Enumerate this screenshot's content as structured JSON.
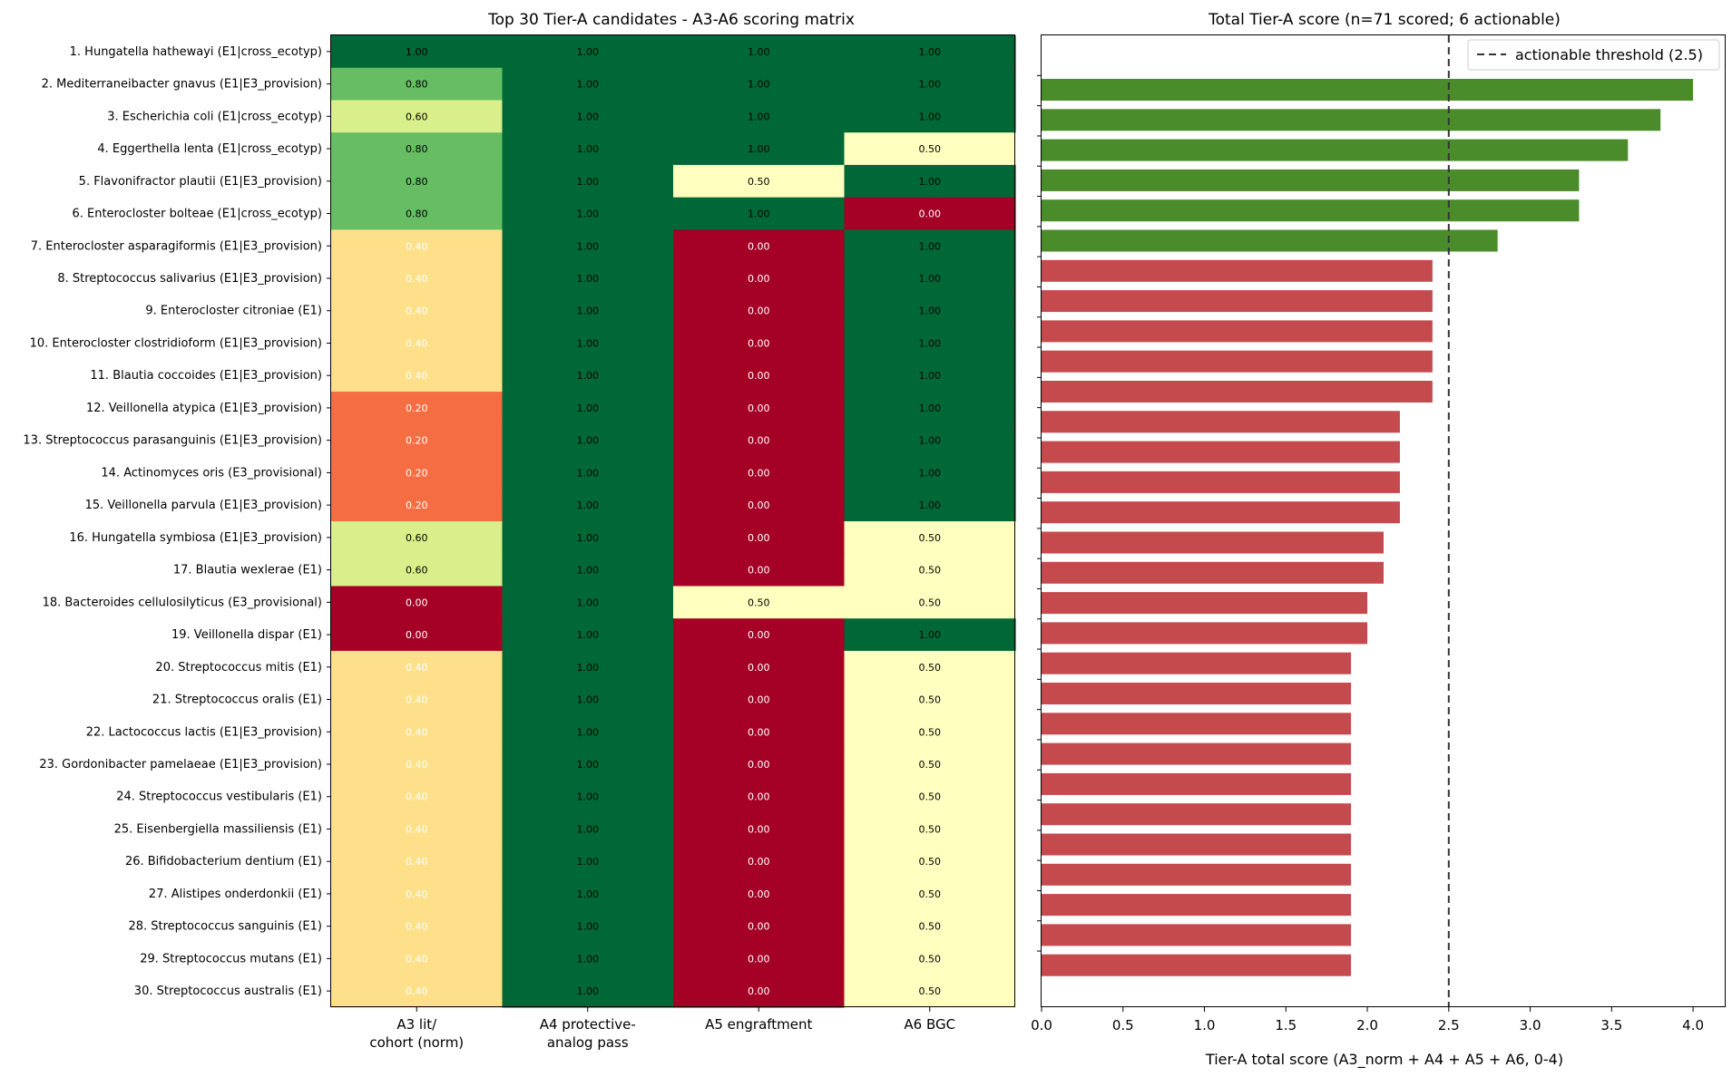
{
  "chart_data": [
    {
      "type": "heatmap",
      "title": "Top 30 Tier-A candidates - A3-A6 scoring matrix",
      "columns": [
        {
          "line1": "A3 lit/",
          "line2": "cohort (norm)"
        },
        {
          "line1": "A4 protective-",
          "line2": "analog pass"
        },
        {
          "line1": "A5 engraftment",
          "line2": ""
        },
        {
          "line1": "A6 BGC",
          "line2": ""
        }
      ],
      "rows": [
        "1. Hungatella hathewayi (E1|cross_ecotyp)",
        "2. Mediterraneibacter gnavus (E1|E3_provision)",
        "3. Escherichia coli (E1|cross_ecotyp)",
        "4. Eggerthella lenta (E1|cross_ecotyp)",
        "5. Flavonifractor plautii (E1|E3_provision)",
        "6. Enterocloster bolteae (E1|cross_ecotyp)",
        "7. Enterocloster asparagiformis (E1|E3_provision)",
        "8. Streptococcus salivarius (E1|E3_provision)",
        "9. Enterocloster citroniae (E1)",
        "10. Enterocloster clostridioform (E1|E3_provision)",
        "11. Blautia coccoides (E1|E3_provision)",
        "12. Veillonella atypica (E1|E3_provision)",
        "13. Streptococcus parasanguinis (E1|E3_provision)",
        "14. Actinomyces oris (E3_provisional)",
        "15. Veillonella parvula (E1|E3_provision)",
        "16. Hungatella symbiosa (E1|E3_provision)",
        "17. Blautia wexlerae (E1)",
        "18. Bacteroides cellulosilyticus (E3_provisional)",
        "19. Veillonella dispar (E1)",
        "20. Streptococcus mitis (E1)",
        "21. Streptococcus oralis (E1)",
        "22. Lactococcus lactis (E1|E3_provision)",
        "23. Gordonibacter pamelaeae (E1|E3_provision)",
        "24. Streptococcus vestibularis (E1)",
        "25. Eisenbergiella massiliensis (E1)",
        "26. Bifidobacterium dentium (E1)",
        "27. Alistipes onderdonkii (E1)",
        "28. Streptococcus sanguinis (E1)",
        "29. Streptococcus mutans (E1)",
        "30. Streptococcus australis (E1)"
      ],
      "values": [
        [
          1.0,
          1.0,
          1.0,
          1.0
        ],
        [
          0.8,
          1.0,
          1.0,
          1.0
        ],
        [
          0.6,
          1.0,
          1.0,
          1.0
        ],
        [
          0.8,
          1.0,
          1.0,
          0.5
        ],
        [
          0.8,
          1.0,
          0.5,
          1.0
        ],
        [
          0.8,
          1.0,
          1.0,
          0.0
        ],
        [
          0.4,
          1.0,
          0.0,
          1.0
        ],
        [
          0.4,
          1.0,
          0.0,
          1.0
        ],
        [
          0.4,
          1.0,
          0.0,
          1.0
        ],
        [
          0.4,
          1.0,
          0.0,
          1.0
        ],
        [
          0.4,
          1.0,
          0.0,
          1.0
        ],
        [
          0.2,
          1.0,
          0.0,
          1.0
        ],
        [
          0.2,
          1.0,
          0.0,
          1.0
        ],
        [
          0.2,
          1.0,
          0.0,
          1.0
        ],
        [
          0.2,
          1.0,
          0.0,
          1.0
        ],
        [
          0.6,
          1.0,
          0.0,
          0.5
        ],
        [
          0.6,
          1.0,
          0.0,
          0.5
        ],
        [
          0.0,
          1.0,
          0.5,
          0.5
        ],
        [
          0.0,
          1.0,
          0.0,
          1.0
        ],
        [
          0.4,
          1.0,
          0.0,
          0.5
        ],
        [
          0.4,
          1.0,
          0.0,
          0.5
        ],
        [
          0.4,
          1.0,
          0.0,
          0.5
        ],
        [
          0.4,
          1.0,
          0.0,
          0.5
        ],
        [
          0.4,
          1.0,
          0.0,
          0.5
        ],
        [
          0.4,
          1.0,
          0.0,
          0.5
        ],
        [
          0.4,
          1.0,
          0.0,
          0.5
        ],
        [
          0.4,
          1.0,
          0.0,
          0.5
        ],
        [
          0.4,
          1.0,
          0.0,
          0.5
        ],
        [
          0.4,
          1.0,
          0.0,
          0.5
        ],
        [
          0.4,
          1.0,
          0.0,
          0.5
        ]
      ],
      "colormap": {
        "0.0": "#a50026",
        "0.2": "#f46d43",
        "0.4": "#fee08b",
        "0.5": "#ffffbf",
        "0.6": "#d9ef8b",
        "0.8": "#66bd63",
        "1.0": "#006837"
      },
      "value_label_format": "2 decimals",
      "vlim": [
        0,
        1
      ]
    },
    {
      "type": "bar",
      "orientation": "horizontal",
      "title": "Total Tier-A score (n=71 scored; 6 actionable)",
      "xlabel": "Tier-A total score (A3_norm + A4 + A5 + A6, 0-4)",
      "xlim": [
        0,
        4.2
      ],
      "xticks": [
        "0.0",
        "0.5",
        "1.0",
        "1.5",
        "2.0",
        "2.5",
        "3.0",
        "3.5",
        "4.0"
      ],
      "values": [
        4.0,
        3.8,
        3.6,
        3.3,
        3.3,
        2.8,
        2.4,
        2.4,
        2.4,
        2.4,
        2.4,
        2.2,
        2.2,
        2.2,
        2.2,
        2.1,
        2.1,
        2.0,
        2.0,
        1.9,
        1.9,
        1.9,
        1.9,
        1.9,
        1.9,
        1.9,
        1.9,
        1.9,
        1.9,
        1.9
      ],
      "threshold": 2.5,
      "legend": {
        "label": "actionable threshold (2.5)",
        "position": "upper-right"
      },
      "colors": {
        "actionable": "#4a8c2a",
        "non_actionable": "#c44a4d",
        "threshold_line": "#333333"
      }
    }
  ]
}
